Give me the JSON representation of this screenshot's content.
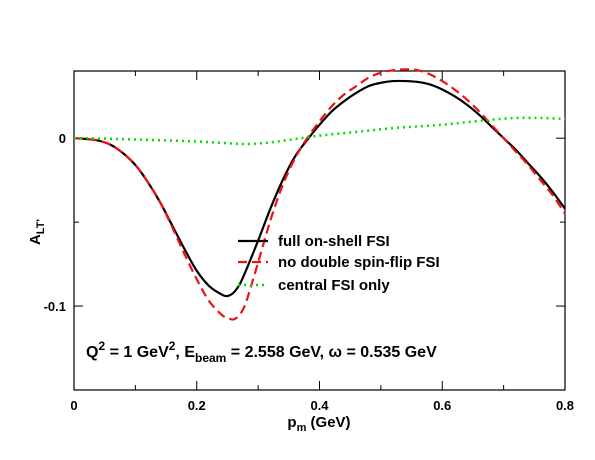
{
  "chart_data": {
    "type": "line",
    "xlabel": {
      "main": "p",
      "sub": "m",
      "rest": " (GeV)"
    },
    "ylabel": {
      "main": "A",
      "sub": "LT'"
    },
    "xlim": [
      0,
      0.8
    ],
    "ylim": [
      -0.15,
      0.04
    ],
    "xticks": [
      0,
      0.2,
      0.4,
      0.6,
      0.8
    ],
    "xtick_labels": [
      "0",
      "0.2",
      "0.4",
      "0.6",
      "0.8"
    ],
    "yticks": [
      0,
      -0.1
    ],
    "ytick_labels": [
      "0",
      "-0.1"
    ],
    "grid": false,
    "legend_position": "center-right",
    "annotation": {
      "q_main": "Q",
      "q_exp": "2",
      "q_val": " = 1 GeV",
      "q_unit_exp": "2",
      "e_sep": ", E",
      "e_sub": "beam",
      "e_val": " = 2.558 GeV, ω = 0.535 GeV"
    },
    "series": [
      {
        "name": "full on-shell FSI",
        "color": "#000000",
        "dash": "solid",
        "x": [
          0,
          0.02,
          0.04,
          0.06,
          0.08,
          0.1,
          0.12,
          0.14,
          0.16,
          0.18,
          0.2,
          0.22,
          0.24,
          0.25,
          0.26,
          0.27,
          0.28,
          0.3,
          0.32,
          0.34,
          0.36,
          0.38,
          0.4,
          0.42,
          0.44,
          0.46,
          0.48,
          0.5,
          0.52,
          0.54,
          0.56,
          0.58,
          0.6,
          0.62,
          0.64,
          0.66,
          0.68,
          0.7,
          0.72,
          0.74,
          0.76,
          0.78,
          0.8
        ],
        "y": [
          0,
          -0.0005,
          -0.0015,
          -0.004,
          -0.009,
          -0.016,
          -0.026,
          -0.038,
          -0.052,
          -0.066,
          -0.079,
          -0.088,
          -0.093,
          -0.094,
          -0.092,
          -0.087,
          -0.079,
          -0.061,
          -0.042,
          -0.025,
          -0.011,
          -0.001,
          0.008,
          0.016,
          0.022,
          0.027,
          0.031,
          0.033,
          0.034,
          0.034,
          0.0335,
          0.032,
          0.029,
          0.025,
          0.02,
          0.014,
          0.007,
          0.0,
          -0.007,
          -0.015,
          -0.023,
          -0.032,
          -0.042
        ]
      },
      {
        "name": "no double spin-flip FSI",
        "color": "#ee1111",
        "dash": "dashed",
        "x": [
          0,
          0.02,
          0.04,
          0.06,
          0.08,
          0.1,
          0.12,
          0.14,
          0.16,
          0.18,
          0.2,
          0.22,
          0.24,
          0.25,
          0.26,
          0.27,
          0.28,
          0.3,
          0.32,
          0.34,
          0.36,
          0.38,
          0.4,
          0.42,
          0.44,
          0.46,
          0.48,
          0.5,
          0.52,
          0.54,
          0.56,
          0.58,
          0.6,
          0.62,
          0.64,
          0.66,
          0.68,
          0.7,
          0.72,
          0.74,
          0.76,
          0.78,
          0.8
        ],
        "y": [
          0,
          -0.0005,
          -0.0015,
          -0.004,
          -0.009,
          -0.016,
          -0.026,
          -0.038,
          -0.053,
          -0.069,
          -0.084,
          -0.097,
          -0.105,
          -0.107,
          -0.108,
          -0.105,
          -0.098,
          -0.074,
          -0.049,
          -0.028,
          -0.012,
          0.0,
          0.01,
          0.019,
          0.026,
          0.031,
          0.036,
          0.039,
          0.0405,
          0.041,
          0.0405,
          0.038,
          0.034,
          0.029,
          0.023,
          0.016,
          0.008,
          0.0,
          -0.008,
          -0.016,
          -0.025,
          -0.034,
          -0.045
        ]
      },
      {
        "name": "central FSI only",
        "color": "#00dd00",
        "dash": "dotted",
        "x": [
          0,
          0.04,
          0.08,
          0.12,
          0.16,
          0.2,
          0.24,
          0.28,
          0.32,
          0.36,
          0.4,
          0.44,
          0.48,
          0.52,
          0.56,
          0.6,
          0.64,
          0.68,
          0.72,
          0.76,
          0.8
        ],
        "y": [
          0,
          -0.0002,
          -0.0006,
          -0.001,
          -0.0015,
          -0.002,
          -0.0028,
          -0.0035,
          -0.0025,
          -0.0005,
          0.0015,
          0.003,
          0.0045,
          0.006,
          0.007,
          0.008,
          0.0095,
          0.011,
          0.012,
          0.012,
          0.0115
        ]
      }
    ]
  }
}
